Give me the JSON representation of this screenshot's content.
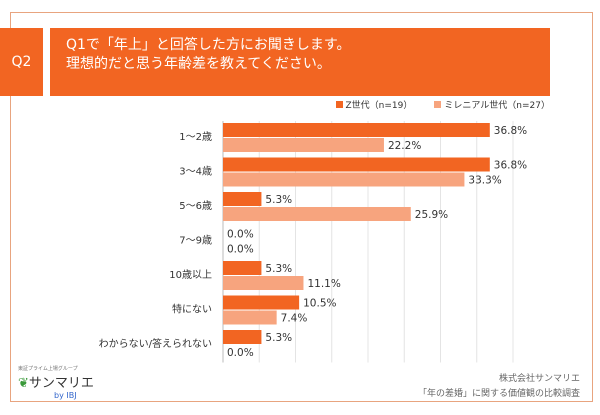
{
  "header": {
    "q": "Q2",
    "title_line1": "Q1で「年上」と回答した方にお聞きします。",
    "title_line2": "理想的だと思う年齢差を教えてください。"
  },
  "chart_data": {
    "type": "bar",
    "orientation": "horizontal",
    "categories": [
      "1〜2歳",
      "3〜4歳",
      "5〜6歳",
      "7〜9歳",
      "10歳以上",
      "特にない",
      "わからない/答えられない"
    ],
    "series": [
      {
        "name": "Z世代（n=19）",
        "color": "#f26522",
        "values": [
          36.8,
          36.8,
          5.3,
          0.0,
          5.3,
          10.5,
          5.3
        ]
      },
      {
        "name": "ミレニアル世代（n=27）",
        "color": "#f7a47e",
        "values": [
          22.2,
          33.3,
          25.9,
          0.0,
          11.1,
          7.4,
          0.0
        ]
      }
    ],
    "xlim": [
      0,
      40
    ],
    "grid": true,
    "legend": "top-right",
    "value_suffix": "%"
  },
  "footer": {
    "company": "株式会社サンマリエ",
    "survey": "「年の差婚」に関する価値観の比較調査"
  },
  "logo": {
    "tagline": "東証プライム上場グループ",
    "name": "サンマリエ",
    "by": "by IBJ"
  }
}
